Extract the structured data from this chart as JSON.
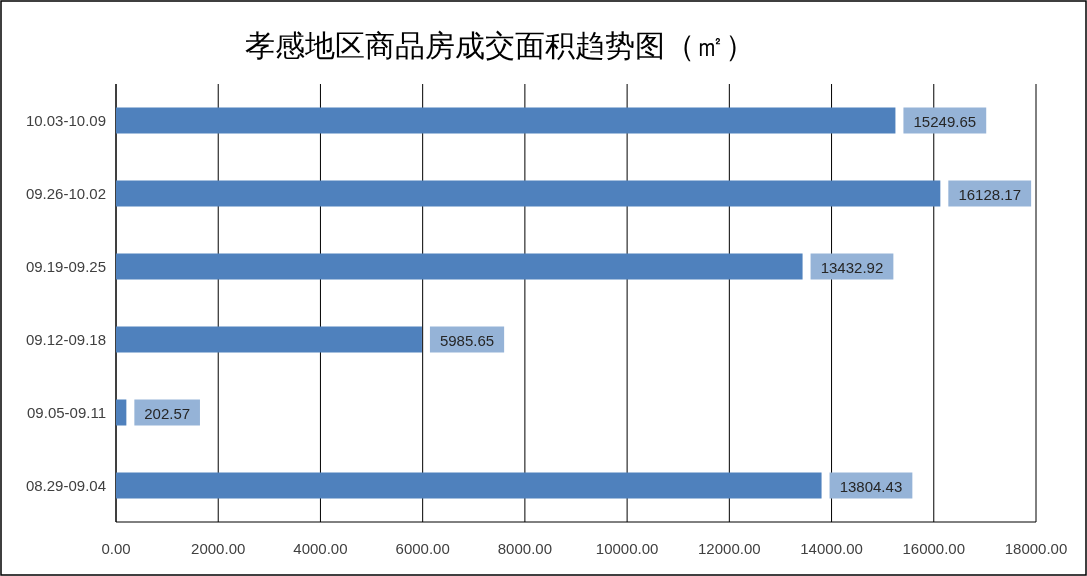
{
  "chart_data": {
    "type": "bar",
    "orientation": "horizontal",
    "title": "孝感地区商品房成交面积趋势图（㎡）",
    "categories": [
      "10.03-10.09",
      "09.26-10.02",
      "09.19-09.25",
      "09.12-09.18",
      "09.05-09.11",
      "08.29-09.04"
    ],
    "values": [
      15249.65,
      16128.17,
      13432.92,
      5985.65,
      202.57,
      13804.43
    ],
    "color": "#4f81bd",
    "xlim": [
      0,
      18000
    ],
    "xticks": [
      {
        "value": 0,
        "label": "0.00"
      },
      {
        "value": 2000,
        "label": "2000.00"
      },
      {
        "value": 4000,
        "label": "4000.00"
      },
      {
        "value": 6000,
        "label": "6000.00"
      },
      {
        "value": 8000,
        "label": "8000.00"
      },
      {
        "value": 10000,
        "label": "10000.00"
      },
      {
        "value": 12000,
        "label": "12000.00"
      },
      {
        "value": 14000,
        "label": "14000.00"
      },
      {
        "value": 16000,
        "label": "16000.00"
      },
      {
        "value": 18000,
        "label": "18000.00"
      }
    ],
    "grid": "x",
    "data_labels": true
  }
}
